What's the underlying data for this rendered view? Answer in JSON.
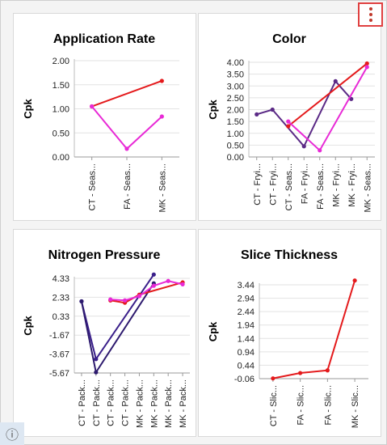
{
  "menu": {
    "icon": "more-vertical-icon"
  },
  "info": {
    "icon": "info-icon",
    "glyph": "ⓘ"
  },
  "colors": {
    "red": "#e41a1c",
    "magenta": "#e82ad6",
    "purple": "#5b2a86",
    "indigo": "#3a1f8a"
  },
  "chart_data": [
    {
      "type": "line",
      "title": "Application Rate",
      "ylabel": "Cpk",
      "xlabel": "",
      "categories": [
        "CT - Seas...",
        "FA - Seas...",
        "MK - Seas..."
      ],
      "yticks": [
        "2.00",
        "1.50",
        "1.00",
        "0.50",
        "0.00"
      ],
      "ylim": [
        0,
        2
      ],
      "grid": true,
      "series": [
        {
          "color": "#e41a1c",
          "points": [
            [
              0,
              1.05
            ],
            [
              2,
              1.58
            ]
          ]
        },
        {
          "color": "#e82ad6",
          "points": [
            [
              0,
              1.05
            ],
            [
              1,
              0.17
            ],
            [
              2,
              0.84
            ]
          ]
        }
      ]
    },
    {
      "type": "line",
      "title": "Color",
      "ylabel": "Cpk",
      "xlabel": "",
      "categories": [
        "CT - Fryi...",
        "CT - Fryi...",
        "CT - Seas...",
        "FA - Fryi...",
        "FA - Seas...",
        "MK - Fryi...",
        "MK - Fryi...",
        "MK - Seas..."
      ],
      "yticks": [
        "4.00",
        "3.50",
        "3.00",
        "2.50",
        "2.00",
        "1.50",
        "1.00",
        "0.50",
        "0.00"
      ],
      "ylim": [
        0,
        4
      ],
      "grid": true,
      "series": [
        {
          "color": "#5b2a86",
          "points": [
            [
              0,
              1.8
            ],
            [
              1,
              2.0
            ],
            [
              3,
              0.45
            ],
            [
              5,
              3.2
            ],
            [
              6,
              2.45
            ]
          ]
        },
        {
          "color": "#e41a1c",
          "points": [
            [
              2,
              1.3
            ],
            [
              7,
              3.95
            ]
          ]
        },
        {
          "color": "#e82ad6",
          "points": [
            [
              2,
              1.5
            ],
            [
              4,
              0.28
            ],
            [
              7,
              3.8
            ]
          ]
        }
      ]
    },
    {
      "type": "line",
      "title": "Nitrogen Pressure",
      "ylabel": "Cpk",
      "xlabel": "",
      "categories": [
        "CT - Pack...",
        "CT - Pack...",
        "CT - Pack...",
        "CT - Pack...",
        "MK - Pack...",
        "MK - Pack...",
        "MK - Pack...",
        "MK - Pack..."
      ],
      "yticks": [
        "4.33",
        "2.33",
        "0.33",
        "-1.67",
        "-3.67",
        "-5.67"
      ],
      "ylim": [
        -5.67,
        4.33
      ],
      "grid": true,
      "series": [
        {
          "color": "#3a1f8a",
          "points": [
            [
              0,
              1.9
            ],
            [
              1,
              -4.2
            ],
            [
              5,
              4.73
            ]
          ]
        },
        {
          "color": "#2d1a6e",
          "points": [
            [
              0,
              1.9
            ],
            [
              1,
              -5.6
            ],
            [
              5,
              3.8
            ]
          ]
        },
        {
          "color": "#e41a1c",
          "points": [
            [
              2,
              2.0
            ],
            [
              3,
              1.75
            ],
            [
              4,
              2.6
            ],
            [
              7,
              3.9
            ]
          ]
        },
        {
          "color": "#e82ad6",
          "points": [
            [
              2,
              2.1
            ],
            [
              3,
              2.0
            ],
            [
              4,
              2.45
            ],
            [
              5,
              3.55
            ],
            [
              6,
              4.05
            ],
            [
              7,
              3.7
            ]
          ]
        }
      ]
    },
    {
      "type": "line",
      "title": "Slice Thickness",
      "ylabel": "Cpk",
      "xlabel": "",
      "categories": [
        "CT - Slic...",
        "FA - Slic...",
        "FA - Slic...",
        "MK - Slic..."
      ],
      "yticks": [
        "3.44",
        "2.94",
        "2.44",
        "1.94",
        "1.44",
        "0.94",
        "0.44",
        "-0.06"
      ],
      "ylim": [
        -0.06,
        3.44
      ],
      "grid": true,
      "series": [
        {
          "color": "#e41a1c",
          "points": [
            [
              0,
              -0.05
            ],
            [
              1,
              0.15
            ],
            [
              2,
              0.25
            ],
            [
              3,
              3.6
            ]
          ]
        }
      ]
    }
  ]
}
